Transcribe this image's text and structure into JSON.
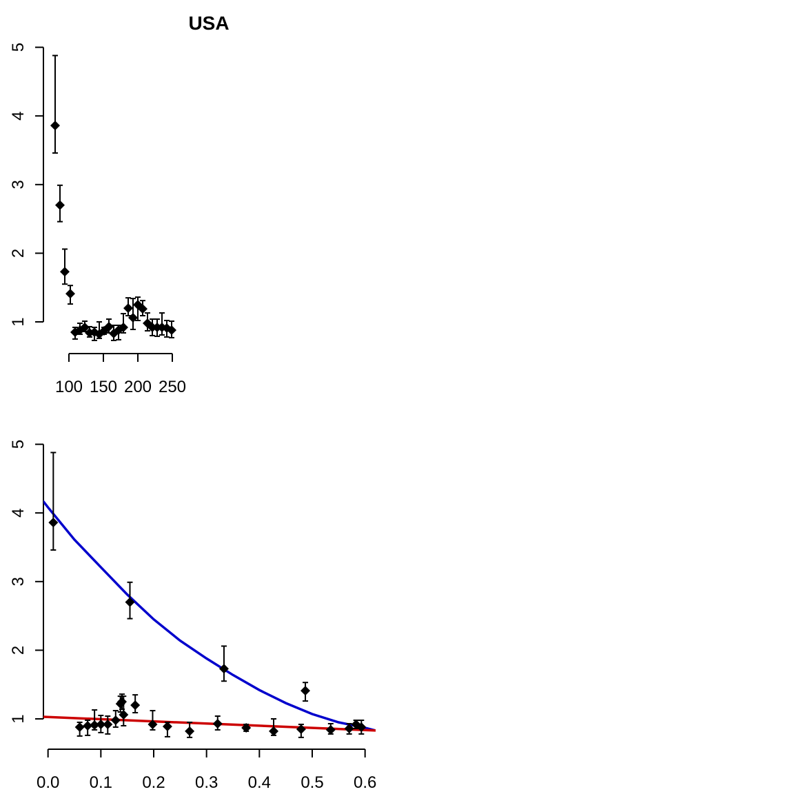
{
  "chart_data": [
    {
      "type": "scatter",
      "title": "USA",
      "xlabel": "",
      "ylabel": "",
      "xlim": [
        78,
        250
      ],
      "ylim": [
        0.55,
        5
      ],
      "x_ticks": [
        "100",
        "150",
        "200",
        "250"
      ],
      "y_ticks": [
        "1",
        "2",
        "3",
        "4",
        "5"
      ],
      "grid": false,
      "series": [
        {
          "points": [
            {
              "x": 80,
              "y": 3.86,
              "lo": 3.46,
              "hi": 4.88
            },
            {
              "x": 87,
              "y": 2.7,
              "lo": 2.46,
              "hi": 2.99
            },
            {
              "x": 94,
              "y": 1.73,
              "lo": 1.55,
              "hi": 2.06
            },
            {
              "x": 102,
              "y": 1.41,
              "lo": 1.26,
              "hi": 1.53
            },
            {
              "x": 109,
              "y": 0.85,
              "lo": 0.75,
              "hi": 0.92
            },
            {
              "x": 116,
              "y": 0.88,
              "lo": 0.82,
              "hi": 0.98
            },
            {
              "x": 123,
              "y": 0.92,
              "lo": 0.86,
              "hi": 1.01
            },
            {
              "x": 130,
              "y": 0.84,
              "lo": 0.78,
              "hi": 0.93
            },
            {
              "x": 137,
              "y": 0.85,
              "lo": 0.73,
              "hi": 0.92
            },
            {
              "x": 144,
              "y": 0.82,
              "lo": 0.76,
              "hi": 1.0
            },
            {
              "x": 151,
              "y": 0.87,
              "lo": 0.82,
              "hi": 0.92
            },
            {
              "x": 158,
              "y": 0.93,
              "lo": 0.84,
              "hi": 1.04
            },
            {
              "x": 165,
              "y": 0.83,
              "lo": 0.73,
              "hi": 0.95
            },
            {
              "x": 172,
              "y": 0.88,
              "lo": 0.74,
              "hi": 0.95
            },
            {
              "x": 179,
              "y": 0.92,
              "lo": 0.84,
              "hi": 1.12
            },
            {
              "x": 186,
              "y": 1.2,
              "lo": 1.09,
              "hi": 1.35
            },
            {
              "x": 193,
              "y": 1.06,
              "lo": 0.89,
              "hi": 1.34
            },
            {
              "x": 200,
              "y": 1.25,
              "lo": 1.02,
              "hi": 1.36
            },
            {
              "x": 207,
              "y": 1.19,
              "lo": 1.09,
              "hi": 1.31
            },
            {
              "x": 214,
              "y": 0.98,
              "lo": 0.87,
              "hi": 1.13
            },
            {
              "x": 221,
              "y": 0.92,
              "lo": 0.8,
              "hi": 1.04
            },
            {
              "x": 228,
              "y": 0.92,
              "lo": 0.79,
              "hi": 1.04
            },
            {
              "x": 235,
              "y": 0.92,
              "lo": 0.81,
              "hi": 1.13
            },
            {
              "x": 242,
              "y": 0.91,
              "lo": 0.78,
              "hi": 1.02
            },
            {
              "x": 249,
              "y": 0.88,
              "lo": 0.77,
              "hi": 1.01
            }
          ]
        }
      ]
    },
    {
      "type": "scatter",
      "title": "",
      "xlabel": "",
      "ylabel": "",
      "xlim": [
        -0.01,
        0.62
      ],
      "ylim": [
        0.55,
        5
      ],
      "x_ticks": [
        "0.0",
        "0.1",
        "0.2",
        "0.3",
        "0.4",
        "0.5",
        "0.6"
      ],
      "y_ticks": [
        "1",
        "2",
        "3",
        "4",
        "5"
      ],
      "grid": false,
      "series": [
        {
          "points": [
            {
              "x": 0.01,
              "y": 3.86,
              "lo": 3.46,
              "hi": 4.88
            },
            {
              "x": 0.155,
              "y": 2.7,
              "lo": 2.46,
              "hi": 2.99
            },
            {
              "x": 0.333,
              "y": 1.73,
              "lo": 1.55,
              "hi": 2.06
            },
            {
              "x": 0.487,
              "y": 1.41,
              "lo": 1.26,
              "hi": 1.53
            },
            {
              "x": 0.06,
              "y": 0.88,
              "lo": 0.75,
              "hi": 0.95
            },
            {
              "x": 0.075,
              "y": 0.9,
              "lo": 0.76,
              "hi": 0.98
            },
            {
              "x": 0.088,
              "y": 0.91,
              "lo": 0.84,
              "hi": 1.13
            },
            {
              "x": 0.1,
              "y": 0.92,
              "lo": 0.8,
              "hi": 1.05
            },
            {
              "x": 0.113,
              "y": 0.92,
              "lo": 0.78,
              "hi": 1.04
            },
            {
              "x": 0.128,
              "y": 0.98,
              "lo": 0.88,
              "hi": 1.12
            },
            {
              "x": 0.137,
              "y": 1.22,
              "lo": 1.1,
              "hi": 1.33
            },
            {
              "x": 0.14,
              "y": 1.25,
              "lo": 1.14,
              "hi": 1.36
            },
            {
              "x": 0.143,
              "y": 1.06,
              "lo": 0.9,
              "hi": 1.33
            },
            {
              "x": 0.165,
              "y": 1.2,
              "lo": 1.09,
              "hi": 1.35
            },
            {
              "x": 0.198,
              "y": 0.92,
              "lo": 0.84,
              "hi": 1.12
            },
            {
              "x": 0.226,
              "y": 0.89,
              "lo": 0.74,
              "hi": 0.95
            },
            {
              "x": 0.268,
              "y": 0.82,
              "lo": 0.73,
              "hi": 0.95
            },
            {
              "x": 0.321,
              "y": 0.93,
              "lo": 0.84,
              "hi": 1.04
            },
            {
              "x": 0.375,
              "y": 0.87,
              "lo": 0.82,
              "hi": 0.92
            },
            {
              "x": 0.427,
              "y": 0.82,
              "lo": 0.76,
              "hi": 1.0
            },
            {
              "x": 0.479,
              "y": 0.85,
              "lo": 0.73,
              "hi": 0.92
            },
            {
              "x": 0.535,
              "y": 0.84,
              "lo": 0.78,
              "hi": 0.93
            },
            {
              "x": 0.57,
              "y": 0.86,
              "lo": 0.78,
              "hi": 0.93
            },
            {
              "x": 0.583,
              "y": 0.92,
              "lo": 0.86,
              "hi": 0.98
            },
            {
              "x": 0.593,
              "y": 0.88,
              "lo": 0.78,
              "hi": 0.98
            }
          ]
        }
      ],
      "lines": [
        {
          "color": "#0000cc",
          "x": [
            -0.01,
            0.0,
            0.05,
            0.1,
            0.15,
            0.2,
            0.25,
            0.3,
            0.35,
            0.4,
            0.45,
            0.5,
            0.55,
            0.6,
            0.62
          ],
          "y": [
            4.18,
            4.08,
            3.61,
            3.21,
            2.81,
            2.45,
            2.14,
            1.88,
            1.64,
            1.42,
            1.23,
            1.07,
            0.95,
            0.87,
            0.83
          ]
        },
        {
          "color": "#cc0000",
          "x": [
            -0.01,
            0.62
          ],
          "y": [
            1.03,
            0.83
          ]
        }
      ]
    }
  ]
}
